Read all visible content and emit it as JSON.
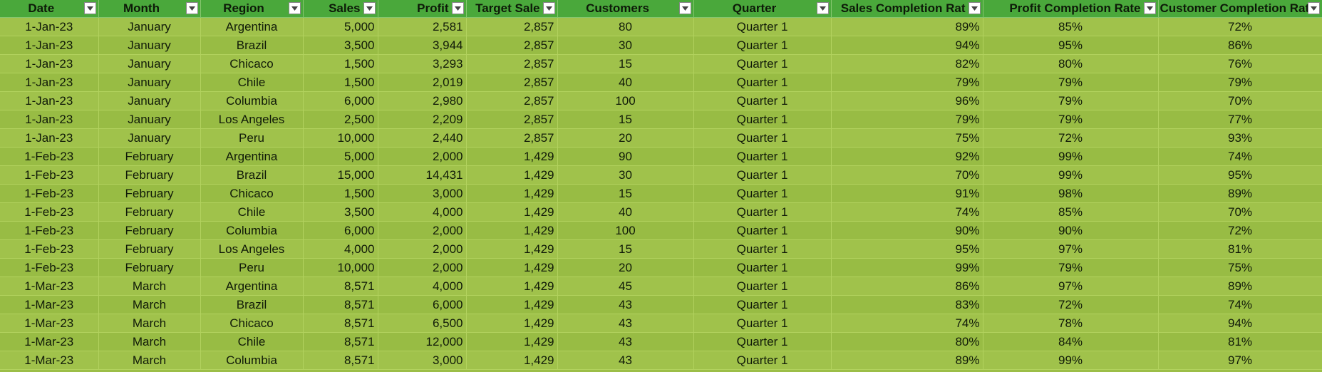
{
  "columns": [
    {
      "key": "date",
      "label": "Date"
    },
    {
      "key": "month",
      "label": "Month"
    },
    {
      "key": "region",
      "label": "Region"
    },
    {
      "key": "sales",
      "label": "Sales"
    },
    {
      "key": "profit",
      "label": "Profit"
    },
    {
      "key": "target",
      "label": "Target Sale"
    },
    {
      "key": "customers",
      "label": "Customers"
    },
    {
      "key": "quarter",
      "label": "Quarter"
    },
    {
      "key": "scr",
      "label": "Sales Completion Rat"
    },
    {
      "key": "pcr",
      "label": "Profit Completion Rate"
    },
    {
      "key": "ccr",
      "label": "Customer Completion Rat"
    }
  ],
  "filter_icon": "dropdown-arrow-icon",
  "rows": [
    [
      "1-Jan-23",
      "January",
      "Argentina",
      "5,000",
      "2,581",
      "2,857",
      "80",
      "Quarter 1",
      "89%",
      "85%",
      "72%"
    ],
    [
      "1-Jan-23",
      "January",
      "Brazil",
      "3,500",
      "3,944",
      "2,857",
      "30",
      "Quarter 1",
      "94%",
      "95%",
      "86%"
    ],
    [
      "1-Jan-23",
      "January",
      "Chicaco",
      "1,500",
      "3,293",
      "2,857",
      "15",
      "Quarter 1",
      "82%",
      "80%",
      "76%"
    ],
    [
      "1-Jan-23",
      "January",
      "Chile",
      "1,500",
      "2,019",
      "2,857",
      "40",
      "Quarter 1",
      "79%",
      "79%",
      "79%"
    ],
    [
      "1-Jan-23",
      "January",
      "Columbia",
      "6,000",
      "2,980",
      "2,857",
      "100",
      "Quarter 1",
      "96%",
      "79%",
      "70%"
    ],
    [
      "1-Jan-23",
      "January",
      "Los Angeles",
      "2,500",
      "2,209",
      "2,857",
      "15",
      "Quarter 1",
      "79%",
      "79%",
      "77%"
    ],
    [
      "1-Jan-23",
      "January",
      "Peru",
      "10,000",
      "2,440",
      "2,857",
      "20",
      "Quarter 1",
      "75%",
      "72%",
      "93%"
    ],
    [
      "1-Feb-23",
      "February",
      "Argentina",
      "5,000",
      "2,000",
      "1,429",
      "90",
      "Quarter 1",
      "92%",
      "99%",
      "74%"
    ],
    [
      "1-Feb-23",
      "February",
      "Brazil",
      "15,000",
      "14,431",
      "1,429",
      "30",
      "Quarter 1",
      "70%",
      "99%",
      "95%"
    ],
    [
      "1-Feb-23",
      "February",
      "Chicaco",
      "1,500",
      "3,000",
      "1,429",
      "15",
      "Quarter 1",
      "91%",
      "98%",
      "89%"
    ],
    [
      "1-Feb-23",
      "February",
      "Chile",
      "3,500",
      "4,000",
      "1,429",
      "40",
      "Quarter 1",
      "74%",
      "85%",
      "70%"
    ],
    [
      "1-Feb-23",
      "February",
      "Columbia",
      "6,000",
      "2,000",
      "1,429",
      "100",
      "Quarter 1",
      "90%",
      "90%",
      "72%"
    ],
    [
      "1-Feb-23",
      "February",
      "Los Angeles",
      "4,000",
      "2,000",
      "1,429",
      "15",
      "Quarter 1",
      "95%",
      "97%",
      "81%"
    ],
    [
      "1-Feb-23",
      "February",
      "Peru",
      "10,000",
      "2,000",
      "1,429",
      "20",
      "Quarter 1",
      "99%",
      "79%",
      "75%"
    ],
    [
      "1-Mar-23",
      "March",
      "Argentina",
      "8,571",
      "4,000",
      "1,429",
      "45",
      "Quarter 1",
      "86%",
      "97%",
      "89%"
    ],
    [
      "1-Mar-23",
      "March",
      "Brazil",
      "8,571",
      "6,000",
      "1,429",
      "43",
      "Quarter 1",
      "83%",
      "72%",
      "74%"
    ],
    [
      "1-Mar-23",
      "March",
      "Chicaco",
      "8,571",
      "6,500",
      "1,429",
      "43",
      "Quarter 1",
      "74%",
      "78%",
      "94%"
    ],
    [
      "1-Mar-23",
      "March",
      "Chile",
      "8,571",
      "12,000",
      "1,429",
      "43",
      "Quarter 1",
      "80%",
      "84%",
      "81%"
    ],
    [
      "1-Mar-23",
      "March",
      "Columbia",
      "8,571",
      "3,000",
      "1,429",
      "43",
      "Quarter 1",
      "89%",
      "99%",
      "97%"
    ]
  ],
  "colors": {
    "header_bg": "#4aa83b",
    "row_bg": "#a0c24b",
    "row_alt_bg": "#98bc44",
    "grid_line": "#b2d25e"
  }
}
